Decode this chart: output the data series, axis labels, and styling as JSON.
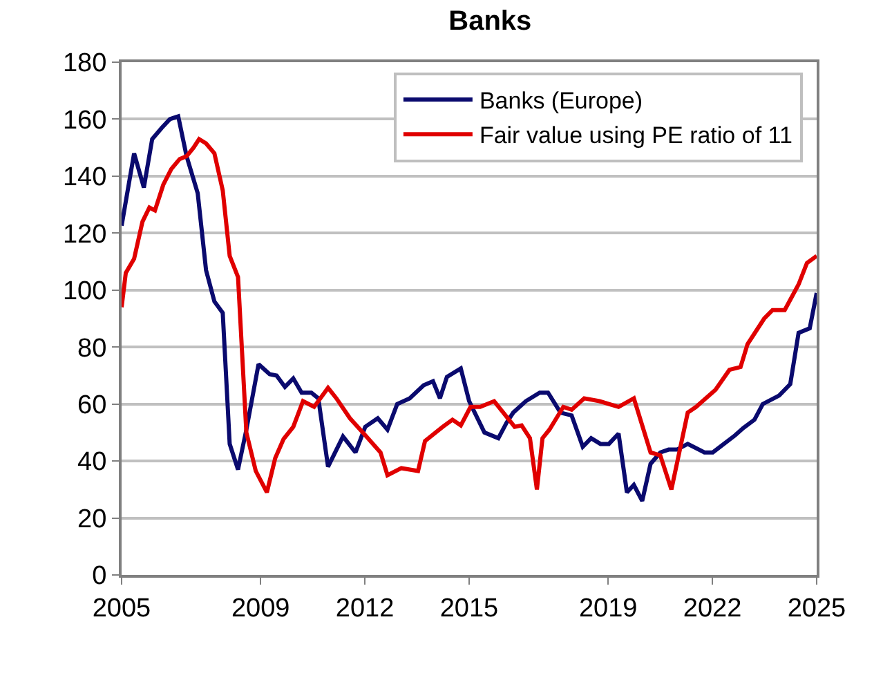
{
  "chart_data": {
    "type": "line",
    "title": "Banks",
    "xlim": [
      2005,
      2025
    ],
    "xticks": [
      2005,
      2009,
      2012,
      2015,
      2019,
      2022,
      2025
    ],
    "ylim": [
      0,
      180
    ],
    "yticks": [
      0,
      20,
      40,
      60,
      80,
      100,
      120,
      140,
      160,
      180
    ],
    "grid": "y",
    "legend": "top right",
    "marker": "none",
    "line_style": "solid",
    "series": [
      {
        "name": "Banks (Europe)",
        "color": "#0a0a6e",
        "x": [
          2005,
          2005.36,
          2005.64,
          2005.88,
          2006.16,
          2006.39,
          2006.63,
          2006.87,
          2007.19,
          2007.43,
          2007.67,
          2007.91,
          2008.11,
          2008.35,
          2008.59,
          2008.94,
          2009.26,
          2009.46,
          2009.7,
          2009.94,
          2010.18,
          2010.46,
          2010.66,
          2010.94,
          2011.37,
          2011.73,
          2012.01,
          2012.37,
          2012.65,
          2012.93,
          2013.29,
          2013.69,
          2013.96,
          2014.16,
          2014.36,
          2014.76,
          2015,
          2015.44,
          2015.84,
          2016.08,
          2016.27,
          2016.63,
          2017.03,
          2017.27,
          2017.63,
          2017.95,
          2018.27,
          2018.51,
          2018.78,
          2019.02,
          2019.3,
          2019.54,
          2019.74,
          2019.98,
          2020.22,
          2020.5,
          2020.74,
          2020.98,
          2021.29,
          2021.77,
          2022.01,
          2022.65,
          2022.89,
          2023.21,
          2023.45,
          2023.92,
          2024.24,
          2024.48,
          2024.8,
          2025
        ],
        "values": [
          122.6,
          148,
          136,
          153,
          157,
          160,
          161,
          147,
          134,
          107,
          96,
          92,
          46,
          37,
          51,
          74,
          70.5,
          70,
          66,
          69,
          64,
          64,
          62,
          38,
          48.6,
          43,
          52,
          55,
          51,
          60,
          62,
          66.6,
          68,
          62,
          69.5,
          72.5,
          61,
          50,
          48,
          53.5,
          57,
          61,
          64,
          64,
          57,
          56,
          45,
          48,
          46,
          46,
          49.6,
          29,
          31.6,
          26,
          39,
          43,
          44,
          44,
          46,
          43,
          43,
          49,
          51.6,
          54.5,
          60,
          63,
          67,
          85,
          86.6,
          99
        ]
      },
      {
        "name": "Fair value using PE ratio of 11",
        "color": "#e00000",
        "x": [
          2005,
          2005.12,
          2005.36,
          2005.6,
          2005.8,
          2005.96,
          2006.2,
          2006.43,
          2006.67,
          2006.87,
          2007.07,
          2007.23,
          2007.43,
          2007.67,
          2007.91,
          2008.11,
          2008.35,
          2008.59,
          2008.86,
          2009.18,
          2009.42,
          2009.66,
          2009.94,
          2010.22,
          2010.54,
          2010.94,
          2011.18,
          2011.57,
          2011.97,
          2012.45,
          2012.65,
          2013.05,
          2013.53,
          2013.73,
          2014.24,
          2014.52,
          2014.76,
          2015.04,
          2015.32,
          2015.72,
          2016.31,
          2016.51,
          2016.75,
          2016.95,
          2017.11,
          2017.31,
          2017.71,
          2017.95,
          2018.31,
          2018.75,
          2019.3,
          2019.74,
          2020.22,
          2020.5,
          2020.82,
          2021.29,
          2021.53,
          2022.09,
          2022.49,
          2022.81,
          2023.01,
          2023.49,
          2023.73,
          2024.08,
          2024.48,
          2024.72,
          2025
        ],
        "values": [
          94,
          106,
          111,
          124,
          129,
          128,
          137,
          142.5,
          146,
          147,
          150,
          153,
          151.5,
          148,
          135,
          112,
          104.6,
          50,
          36.5,
          29,
          41,
          47.7,
          52,
          61,
          59,
          65.7,
          62,
          55,
          49.6,
          43,
          35,
          37.5,
          36.5,
          47,
          52,
          54.5,
          52.5,
          59,
          59,
          61,
          52,
          52.5,
          48,
          30,
          48,
          51,
          59,
          58,
          62,
          61,
          59,
          62,
          43,
          42,
          30,
          57,
          59,
          65,
          72,
          73,
          81,
          90,
          93,
          93,
          102,
          109.5,
          112
        ]
      }
    ]
  }
}
